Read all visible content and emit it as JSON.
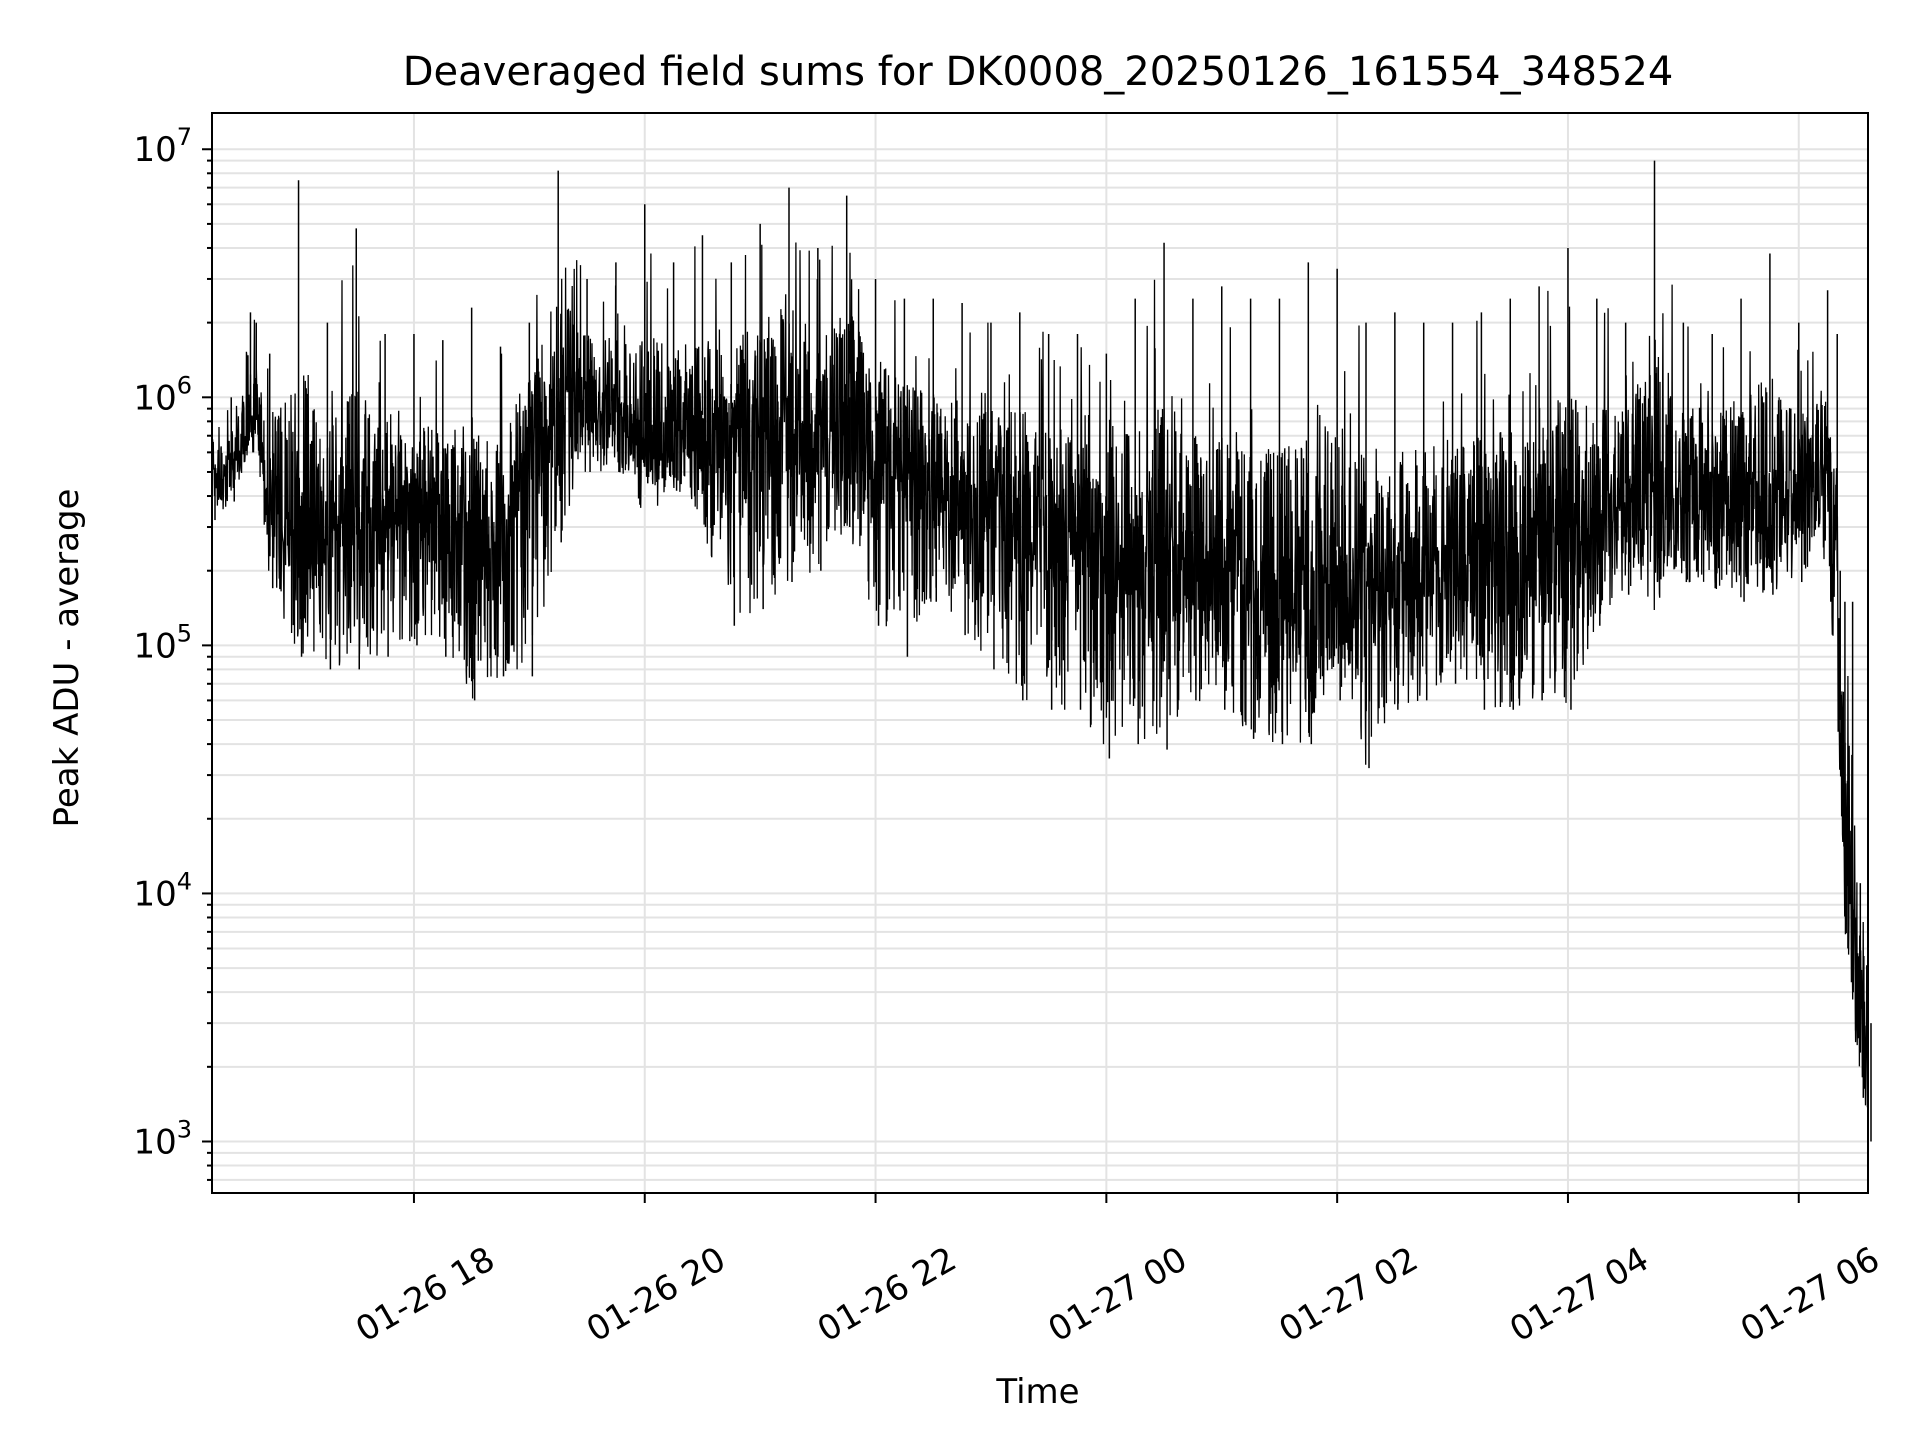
{
  "chart_data": {
    "type": "line",
    "title": "Deaveraged field sums for DK0008_20250126_161554_348524",
    "xlabel": "Time",
    "ylabel": "Peak ADU - average",
    "yscale": "log",
    "ylim": [
      620,
      14000000
    ],
    "xlim": [
      "2025-01-26 16:15",
      "2025-01-27 06:36"
    ],
    "grid": true,
    "legend": "none",
    "line_color": "#000000",
    "x_ticks": [
      {
        "value": "2025-01-26 18:00",
        "label": "01-26 18"
      },
      {
        "value": "2025-01-26 20:00",
        "label": "01-26 20"
      },
      {
        "value": "2025-01-26 22:00",
        "label": "01-26 22"
      },
      {
        "value": "2025-01-27 00:00",
        "label": "01-27 00"
      },
      {
        "value": "2025-01-27 02:00",
        "label": "01-27 02"
      },
      {
        "value": "2025-01-27 04:00",
        "label": "01-27 04"
      },
      {
        "value": "2025-01-27 06:00",
        "label": "01-27 06"
      }
    ],
    "y_ticks": [
      {
        "value": 1000,
        "base": "10",
        "exp": "3"
      },
      {
        "value": 10000,
        "base": "10",
        "exp": "4"
      },
      {
        "value": 100000,
        "base": "10",
        "exp": "5"
      },
      {
        "value": 1000000,
        "base": "10",
        "exp": "6"
      },
      {
        "value": 10000000,
        "base": "10",
        "exp": "7"
      }
    ],
    "series": [
      {
        "x": [
          "2025-01-26 16:15",
          "2025-01-26 16:25",
          "2025-01-26 16:35",
          "2025-01-26 16:38",
          "2025-01-26 16:45",
          "2025-01-26 17:00",
          "2025-01-26 17:15",
          "2025-01-26 17:30",
          "2025-01-26 17:45",
          "2025-01-26 18:00",
          "2025-01-26 18:15",
          "2025-01-26 18:30",
          "2025-01-26 18:45",
          "2025-01-26 19:00",
          "2025-01-26 19:15",
          "2025-01-26 19:30",
          "2025-01-26 19:45",
          "2025-01-26 20:00",
          "2025-01-26 20:15",
          "2025-01-26 20:30",
          "2025-01-26 20:45",
          "2025-01-26 21:00",
          "2025-01-26 21:15",
          "2025-01-26 21:30",
          "2025-01-26 21:45",
          "2025-01-26 22:00",
          "2025-01-26 22:15",
          "2025-01-26 22:30",
          "2025-01-26 22:45",
          "2025-01-26 23:00",
          "2025-01-26 23:15",
          "2025-01-26 23:30",
          "2025-01-26 23:45",
          "2025-01-27 00:00",
          "2025-01-27 00:15",
          "2025-01-27 00:30",
          "2025-01-27 00:45",
          "2025-01-27 01:00",
          "2025-01-27 01:15",
          "2025-01-27 01:30",
          "2025-01-27 01:45",
          "2025-01-27 02:00",
          "2025-01-27 02:15",
          "2025-01-27 02:30",
          "2025-01-27 02:45",
          "2025-01-27 03:00",
          "2025-01-27 03:15",
          "2025-01-27 03:30",
          "2025-01-27 03:45",
          "2025-01-27 04:00",
          "2025-01-27 04:15",
          "2025-01-27 04:30",
          "2025-01-27 04:45",
          "2025-01-27 05:00",
          "2025-01-27 05:15",
          "2025-01-27 05:30",
          "2025-01-27 05:45",
          "2025-01-27 06:00",
          "2025-01-27 06:15",
          "2025-01-27 06:20",
          "2025-01-27 06:24",
          "2025-01-27 06:28",
          "2025-01-27 06:32",
          "2025-01-27 06:36"
        ],
        "median": [
          500000,
          600000,
          800000,
          1000000,
          400000,
          400000,
          380000,
          360000,
          420000,
          420000,
          400000,
          350000,
          330000,
          900000,
          1100000,
          1100000,
          1000000,
          800000,
          800000,
          850000,
          900000,
          1000000,
          1000000,
          900000,
          1000000,
          800000,
          600000,
          550000,
          500000,
          450000,
          420000,
          400000,
          350000,
          300000,
          300000,
          300000,
          280000,
          250000,
          220000,
          200000,
          220000,
          250000,
          250000,
          250000,
          260000,
          280000,
          300000,
          300000,
          320000,
          350000,
          400000,
          450000,
          480000,
          500000,
          500000,
          500000,
          500000,
          500000,
          600000,
          200000,
          15000,
          8000,
          4000,
          3000
        ],
        "upper": [
          700000,
          1000000,
          2200000,
          2000000,
          1500000,
          7500000,
          2000000,
          4800000,
          1800000,
          1800000,
          1700000,
          2300000,
          1600000,
          2000000,
          8200000,
          3000000,
          3500000,
          6000000,
          3500000,
          4500000,
          3500000,
          5000000,
          7000000,
          4000000,
          6500000,
          3000000,
          2500000,
          2500000,
          2400000,
          2000000,
          2200000,
          1800000,
          1800000,
          1500000,
          2500000,
          4200000,
          2500000,
          2800000,
          2500000,
          2500000,
          3500000,
          3300000,
          2000000,
          2200000,
          2000000,
          2000000,
          2200000,
          2500000,
          2800000,
          4000000,
          2500000,
          2000000,
          9000000,
          2000000,
          1800000,
          2500000,
          3800000,
          2000000,
          2700000,
          1800000,
          150000,
          150000,
          11000,
          11000
        ],
        "lower": [
          320000,
          380000,
          600000,
          700000,
          170000,
          90000,
          80000,
          80000,
          90000,
          100000,
          90000,
          60000,
          75000,
          75000,
          260000,
          500000,
          500000,
          450000,
          420000,
          300000,
          120000,
          140000,
          180000,
          200000,
          300000,
          120000,
          90000,
          150000,
          110000,
          80000,
          60000,
          55000,
          55000,
          35000,
          40000,
          38000,
          60000,
          55000,
          42000,
          40000,
          40000,
          60000,
          32000,
          55000,
          60000,
          70000,
          55000,
          55000,
          60000,
          55000,
          120000,
          160000,
          180000,
          180000,
          170000,
          150000,
          160000,
          180000,
          200000,
          50000,
          6000,
          2800,
          1500,
          1000
        ]
      }
    ]
  }
}
